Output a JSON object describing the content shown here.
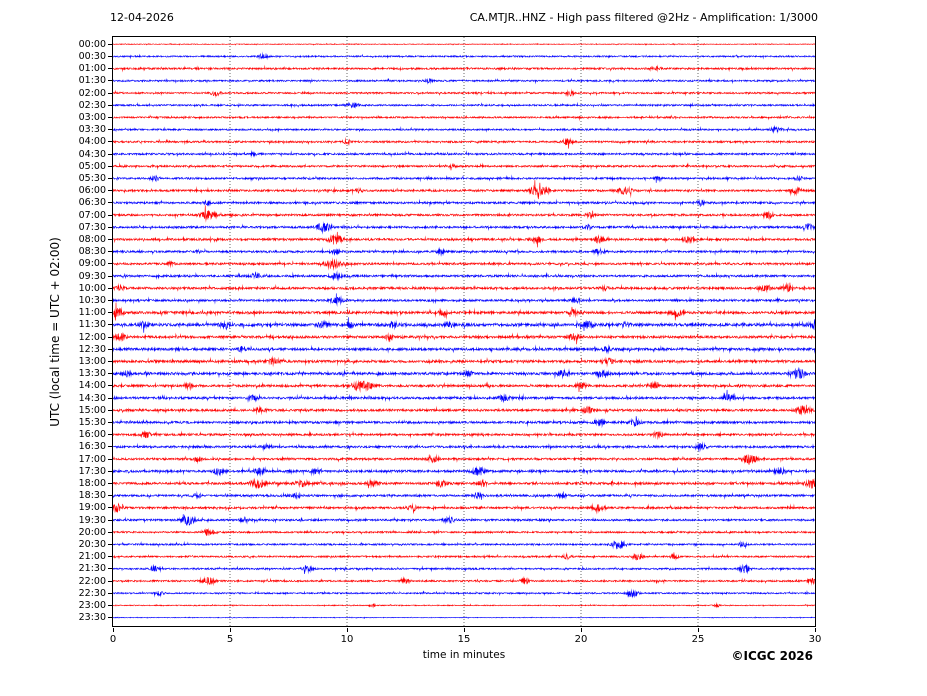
{
  "header": {
    "date": "12-04-2026",
    "title": "CA.MTJR..HNZ - High pass filtered @2Hz - Amplification: 1/3000"
  },
  "axes": {
    "y_label": "UTC (local time = UTC + 02:00)",
    "x_label": "time in minutes",
    "x_ticks": [
      0,
      5,
      10,
      15,
      20,
      25,
      30
    ],
    "x_min": 0,
    "x_max": 30,
    "grid_minutes": [
      5,
      10,
      15,
      20,
      25
    ]
  },
  "footer": {
    "copyright": "©ICGC 2026"
  },
  "colors": {
    "red": "#ff0000",
    "blue": "#0000ff",
    "frame": "#000000",
    "grid": "#444444"
  },
  "chart_data": {
    "type": "line",
    "subtype": "helicorder",
    "title": "CA.MTJR..HNZ - High pass filtered @2Hz - Amplification: 1/3000",
    "date": "12-04-2026",
    "xlabel": "time in minutes",
    "ylabel": "UTC (local time = UTC + 02:00)",
    "xlim": [
      0,
      30
    ],
    "grid": "vertical-dotted",
    "row_interval_minutes": 30,
    "rows": [
      {
        "label": "00:00",
        "color": "red",
        "noise": 0.35,
        "events": []
      },
      {
        "label": "00:30",
        "color": "blue",
        "noise": 0.7,
        "events": [
          [
            6.4,
            2,
            0.15
          ]
        ]
      },
      {
        "label": "01:00",
        "color": "red",
        "noise": 0.9,
        "events": [
          [
            23.2,
            1.5,
            0.15
          ]
        ]
      },
      {
        "label": "01:30",
        "color": "blue",
        "noise": 0.8,
        "events": [
          [
            13.5,
            1.5,
            0.12
          ]
        ]
      },
      {
        "label": "02:00",
        "color": "red",
        "noise": 0.8,
        "events": [
          [
            4.4,
            2.5,
            0.15
          ],
          [
            19.5,
            2.5,
            0.12
          ]
        ]
      },
      {
        "label": "02:30",
        "color": "blue",
        "noise": 0.8,
        "events": [
          [
            10.2,
            2,
            0.15
          ]
        ]
      },
      {
        "label": "03:00",
        "color": "red",
        "noise": 0.8,
        "events": []
      },
      {
        "label": "03:30",
        "color": "blue",
        "noise": 0.8,
        "events": [
          [
            28.3,
            2.2,
            0.15
          ]
        ]
      },
      {
        "label": "04:00",
        "color": "red",
        "noise": 0.9,
        "events": [
          [
            10.0,
            2,
            0.12
          ],
          [
            19.4,
            2.8,
            0.15
          ]
        ]
      },
      {
        "label": "04:30",
        "color": "blue",
        "noise": 0.9,
        "events": [
          [
            6.0,
            1.5,
            0.1
          ]
        ]
      },
      {
        "label": "05:00",
        "color": "red",
        "noise": 0.9,
        "events": [
          [
            14.5,
            1.5,
            0.1
          ]
        ]
      },
      {
        "label": "05:30",
        "color": "blue",
        "noise": 0.9,
        "events": [
          [
            1.8,
            2,
            0.12
          ],
          [
            23.3,
            2,
            0.12
          ],
          [
            29.3,
            2,
            0.12
          ]
        ]
      },
      {
        "label": "06:00",
        "color": "red",
        "noise": 1.0,
        "events": [
          [
            10.5,
            2,
            0.12
          ],
          [
            18.1,
            4.5,
            0.2
          ],
          [
            18.5,
            2.5,
            0.12
          ],
          [
            21.9,
            4,
            0.18
          ],
          [
            29.2,
            2.8,
            0.15
          ]
        ]
      },
      {
        "label": "06:30",
        "color": "blue",
        "noise": 1.0,
        "events": [
          [
            4.0,
            2,
            0.12
          ],
          [
            25.1,
            2,
            0.12
          ]
        ]
      },
      {
        "label": "07:00",
        "color": "red",
        "noise": 1.0,
        "events": [
          [
            4.05,
            4.5,
            0.2
          ],
          [
            20.4,
            2,
            0.12
          ],
          [
            28.0,
            2.8,
            0.15
          ]
        ]
      },
      {
        "label": "07:30",
        "color": "blue",
        "noise": 1.0,
        "events": [
          [
            9.0,
            4.5,
            0.2
          ],
          [
            20.3,
            2,
            0.12
          ],
          [
            29.7,
            3,
            0.15
          ]
        ]
      },
      {
        "label": "08:00",
        "color": "red",
        "noise": 1.0,
        "events": [
          [
            9.5,
            4.5,
            0.2
          ],
          [
            18.1,
            2.8,
            0.15
          ],
          [
            20.8,
            2.8,
            0.15
          ],
          [
            24.6,
            2.5,
            0.15
          ]
        ]
      },
      {
        "label": "08:30",
        "color": "blue",
        "noise": 1.0,
        "events": [
          [
            9.5,
            2.5,
            0.15
          ],
          [
            14.0,
            2,
            0.12
          ],
          [
            20.8,
            2.8,
            0.15
          ]
        ]
      },
      {
        "label": "09:00",
        "color": "red",
        "noise": 1.0,
        "events": [
          [
            2.5,
            2,
            0.12
          ],
          [
            9.4,
            5,
            0.22
          ]
        ]
      },
      {
        "label": "09:30",
        "color": "blue",
        "noise": 1.0,
        "events": [
          [
            6.1,
            3,
            0.15
          ],
          [
            9.5,
            3,
            0.15
          ]
        ]
      },
      {
        "label": "10:00",
        "color": "red",
        "noise": 1.1,
        "events": [
          [
            0.3,
            2.5,
            0.12
          ],
          [
            21.0,
            2.2,
            0.12
          ],
          [
            27.9,
            3,
            0.15
          ],
          [
            28.8,
            3,
            0.15
          ]
        ]
      },
      {
        "label": "10:30",
        "color": "blue",
        "noise": 1.0,
        "events": [
          [
            9.6,
            4,
            0.18
          ],
          [
            19.8,
            2,
            0.12
          ]
        ]
      },
      {
        "label": "11:00",
        "color": "red",
        "noise": 1.2,
        "events": [
          [
            0.15,
            4.5,
            0.18
          ],
          [
            14.1,
            2.2,
            0.12
          ],
          [
            19.7,
            2.2,
            0.12
          ],
          [
            24.1,
            2.8,
            0.15
          ]
        ]
      },
      {
        "label": "11:30",
        "color": "blue",
        "noise": 1.4,
        "events": [
          [
            1.3,
            2.5,
            0.12
          ],
          [
            4.8,
            2.8,
            0.15
          ],
          [
            9.0,
            3,
            0.15
          ],
          [
            10.1,
            2.5,
            0.12
          ],
          [
            12.0,
            2.5,
            0.12
          ],
          [
            14.4,
            2.2,
            0.12
          ],
          [
            20.3,
            2.8,
            0.15
          ],
          [
            21.9,
            2.2,
            0.12
          ],
          [
            29.9,
            2.5,
            0.12
          ]
        ]
      },
      {
        "label": "12:00",
        "color": "red",
        "noise": 1.2,
        "events": [
          [
            0.3,
            3,
            0.15
          ],
          [
            11.8,
            2,
            0.12
          ],
          [
            19.7,
            3,
            0.15
          ]
        ]
      },
      {
        "label": "12:30",
        "color": "blue",
        "noise": 1.2,
        "events": [
          [
            5.5,
            2.2,
            0.12
          ],
          [
            21.1,
            2.2,
            0.12
          ]
        ]
      },
      {
        "label": "13:00",
        "color": "red",
        "noise": 1.2,
        "events": [
          [
            6.9,
            3,
            0.15
          ],
          [
            21.2,
            3,
            0.15
          ]
        ]
      },
      {
        "label": "13:30",
        "color": "blue",
        "noise": 1.2,
        "events": [
          [
            0.6,
            2.5,
            0.12
          ],
          [
            15.2,
            2.2,
            0.12
          ],
          [
            19.2,
            2.8,
            0.15
          ],
          [
            20.9,
            3.2,
            0.15
          ],
          [
            29.3,
            4.5,
            0.2
          ]
        ]
      },
      {
        "label": "14:00",
        "color": "red",
        "noise": 1.1,
        "events": [
          [
            3.2,
            2.5,
            0.12
          ],
          [
            10.5,
            4.5,
            0.2
          ],
          [
            10.9,
            3,
            0.15
          ],
          [
            20.0,
            2.8,
            0.15
          ],
          [
            23.1,
            2.8,
            0.15
          ]
        ]
      },
      {
        "label": "14:30",
        "color": "blue",
        "noise": 1.1,
        "events": [
          [
            6.0,
            2.2,
            0.12
          ],
          [
            16.7,
            3,
            0.15
          ],
          [
            26.3,
            2.8,
            0.15
          ]
        ]
      },
      {
        "label": "15:00",
        "color": "red",
        "noise": 1.1,
        "events": [
          [
            6.3,
            2.5,
            0.15
          ],
          [
            20.3,
            2.8,
            0.15
          ],
          [
            29.5,
            4.5,
            0.2
          ]
        ]
      },
      {
        "label": "15:30",
        "color": "blue",
        "noise": 1.1,
        "events": [
          [
            20.8,
            3,
            0.15
          ],
          [
            22.3,
            3,
            0.15
          ]
        ]
      },
      {
        "label": "16:00",
        "color": "red",
        "noise": 1.0,
        "events": [
          [
            1.4,
            2.8,
            0.15
          ],
          [
            23.3,
            2.8,
            0.15
          ]
        ]
      },
      {
        "label": "16:30",
        "color": "blue",
        "noise": 1.0,
        "events": [
          [
            6.5,
            2,
            0.12
          ],
          [
            25.1,
            3,
            0.15
          ]
        ]
      },
      {
        "label": "17:00",
        "color": "red",
        "noise": 1.0,
        "events": [
          [
            3.6,
            2,
            0.12
          ],
          [
            13.7,
            2.8,
            0.15
          ],
          [
            27.2,
            4.5,
            0.2
          ]
        ]
      },
      {
        "label": "17:30",
        "color": "blue",
        "noise": 1.1,
        "events": [
          [
            4.5,
            2.8,
            0.15
          ],
          [
            6.2,
            2.8,
            0.15
          ],
          [
            8.7,
            2.2,
            0.12
          ],
          [
            15.6,
            4,
            0.18
          ],
          [
            28.5,
            3,
            0.15
          ]
        ]
      },
      {
        "label": "18:00",
        "color": "red",
        "noise": 1.1,
        "events": [
          [
            6.2,
            4.2,
            0.2
          ],
          [
            8.1,
            2.8,
            0.15
          ],
          [
            11.1,
            2.8,
            0.15
          ],
          [
            14.0,
            2.8,
            0.15
          ],
          [
            15.8,
            2.8,
            0.15
          ],
          [
            29.9,
            4.5,
            0.2
          ]
        ]
      },
      {
        "label": "18:30",
        "color": "blue",
        "noise": 1.0,
        "events": [
          [
            3.6,
            2.2,
            0.12
          ],
          [
            7.8,
            3,
            0.15
          ],
          [
            15.6,
            2.2,
            0.12
          ],
          [
            19.2,
            2.2,
            0.12
          ]
        ]
      },
      {
        "label": "19:00",
        "color": "red",
        "noise": 1.0,
        "events": [
          [
            0.2,
            3.5,
            0.15
          ],
          [
            12.8,
            2.8,
            0.15
          ],
          [
            20.7,
            3.2,
            0.18
          ]
        ]
      },
      {
        "label": "19:30",
        "color": "blue",
        "noise": 0.9,
        "events": [
          [
            3.2,
            4.5,
            0.2
          ],
          [
            5.6,
            2.5,
            0.12
          ],
          [
            14.4,
            2.8,
            0.15
          ]
        ]
      },
      {
        "label": "20:00",
        "color": "red",
        "noise": 0.8,
        "events": [
          [
            4.1,
            3.2,
            0.18
          ]
        ]
      },
      {
        "label": "20:30",
        "color": "blue",
        "noise": 0.8,
        "events": [
          [
            21.6,
            4.5,
            0.18
          ],
          [
            26.9,
            2,
            0.12
          ]
        ]
      },
      {
        "label": "21:00",
        "color": "red",
        "noise": 0.8,
        "events": [
          [
            19.4,
            2,
            0.12
          ],
          [
            22.4,
            2.8,
            0.15
          ],
          [
            24.0,
            2,
            0.12
          ]
        ]
      },
      {
        "label": "21:30",
        "color": "blue",
        "noise": 0.8,
        "events": [
          [
            1.8,
            2,
            0.12
          ],
          [
            8.3,
            2.8,
            0.15
          ],
          [
            27.0,
            4.8,
            0.15
          ]
        ]
      },
      {
        "label": "22:00",
        "color": "red",
        "noise": 0.8,
        "events": [
          [
            4.1,
            3.5,
            0.18
          ],
          [
            12.5,
            2,
            0.12
          ],
          [
            17.6,
            2.5,
            0.12
          ],
          [
            29.9,
            3,
            0.15
          ]
        ]
      },
      {
        "label": "22:30",
        "color": "blue",
        "noise": 0.7,
        "events": [
          [
            2.0,
            2,
            0.12
          ],
          [
            22.2,
            3.5,
            0.15
          ]
        ]
      },
      {
        "label": "23:00",
        "color": "red",
        "noise": 0.45,
        "events": [
          [
            11.1,
            1.5,
            0.1
          ],
          [
            25.8,
            1.5,
            0.1
          ]
        ]
      },
      {
        "label": "23:30",
        "color": "blue",
        "noise": 0.3,
        "events": []
      }
    ]
  }
}
